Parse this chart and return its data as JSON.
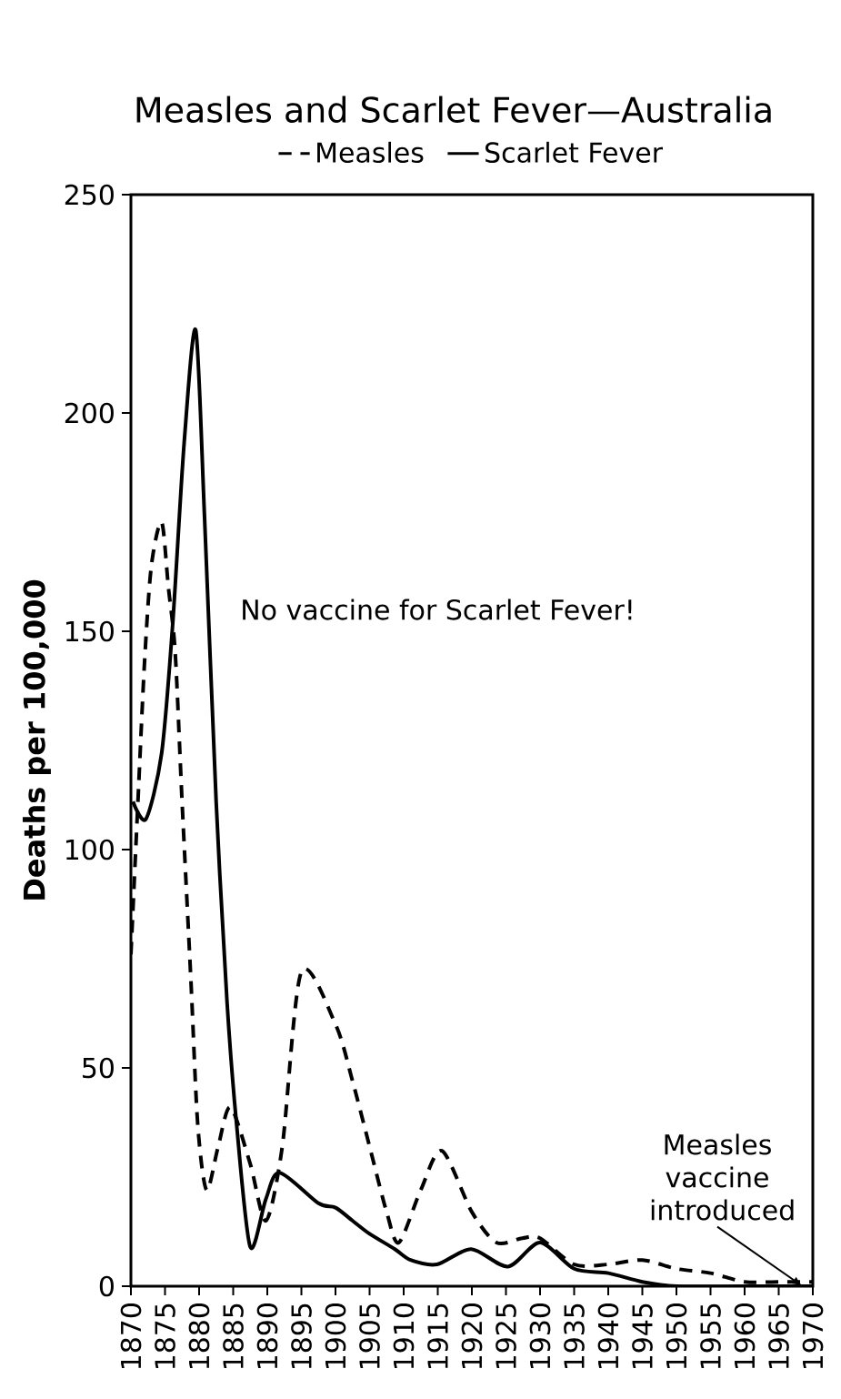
{
  "chart_data": {
    "type": "line",
    "title": "Measles and Scarlet Fever—Australia",
    "ylabel": "Deaths per 100,000",
    "xlim": [
      1870,
      1970
    ],
    "xticks": [
      1870,
      1875,
      1880,
      1885,
      1890,
      1895,
      1900,
      1905,
      1910,
      1915,
      1920,
      1925,
      1930,
      1935,
      1940,
      1945,
      1950,
      1955,
      1960,
      1965,
      1970
    ],
    "ylim": [
      0,
      250
    ],
    "yticks": [
      0,
      50,
      100,
      150,
      200,
      250
    ],
    "legend": "top",
    "grid": false,
    "marker": "none",
    "series": [
      {
        "name": "Measles",
        "color": "#000000",
        "line_style": "dashed",
        "x": [
          1870,
          1871,
          1872,
          1873,
          1874.5,
          1875.5,
          1876.5,
          1877.5,
          1878.8,
          1879.8,
          1881.1,
          1882.8,
          1884.6,
          1887.5,
          1889.8,
          1892.2,
          1895,
          1900,
          1902.5,
          1905,
          1907.5,
          1909.3,
          1912.5,
          1915.6,
          1920,
          1923.6,
          1927.4,
          1930,
          1935,
          1940,
          1945,
          1950,
          1955,
          1960,
          1965,
          1970
        ],
        "values": [
          76,
          110,
          143,
          165,
          175,
          160,
          145,
          111,
          70,
          37,
          22,
          32,
          41,
          28,
          15,
          32,
          72,
          60,
          47,
          32,
          17,
          10,
          22,
          31,
          17,
          10,
          11,
          11,
          5,
          5,
          6,
          4,
          3,
          1,
          1,
          1
        ]
      },
      {
        "name": "Scarlet Fever",
        "color": "#000000",
        "line_style": "solid",
        "x": [
          1870.3,
          1872.2,
          1874.5,
          1876.1,
          1877.8,
          1879.5,
          1880.8,
          1882.5,
          1884.1,
          1885.5,
          1887.5,
          1889.8,
          1891.8,
          1897.5,
          1900,
          1902.5,
          1905,
          1908.7,
          1911,
          1914.9,
          1919.9,
          1925.3,
          1930,
          1935,
          1940,
          1945,
          1950,
          1960,
          1970
        ],
        "values": [
          111,
          107,
          122,
          151,
          193,
          219,
          176,
          111,
          65,
          37,
          9,
          20,
          26,
          19,
          18,
          15,
          12,
          8.5,
          6,
          5,
          8.5,
          4.5,
          10,
          4,
          3,
          1,
          0,
          0,
          0
        ]
      }
    ],
    "annotations": [
      "No vaccine for Scarlet Fever!",
      {
        "text": "Measles vaccine introduced",
        "x": 1968.5,
        "y": 0
      }
    ]
  }
}
